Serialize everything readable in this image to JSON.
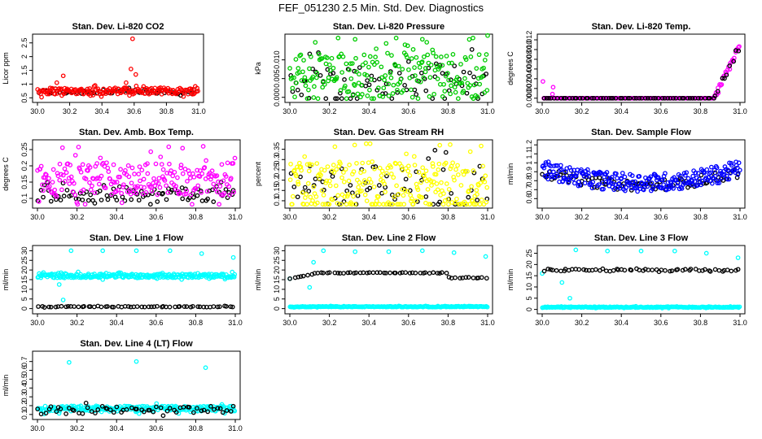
{
  "figure_title": "FEF_051230  2.5 Min. Std. Dev. Diagnostics",
  "colors": {
    "black": "#000000",
    "red": "#ff0000",
    "green": "#00cc00",
    "magenta": "#ff00ff",
    "yellow": "#ffff00",
    "blue": "#0000ff",
    "cyan": "#00ffff"
  },
  "chart_data": [
    {
      "type": "scatter",
      "title": "Stan. Dev. Li-820 CO2",
      "ylabel": "Licor ppm",
      "xlim": [
        30.0,
        31.0
      ],
      "ylim": [
        0.45,
        2.7
      ],
      "xticks": [
        "30.0",
        "30.2",
        "30.4",
        "30.6",
        "30.8",
        "31.0"
      ],
      "yticks": [
        0.5,
        1.0,
        1.5,
        2.0,
        2.5
      ],
      "series": [
        {
          "name": "black",
          "color": "black",
          "pattern": "band",
          "base": 0.72,
          "spread": 0.08,
          "n": 60
        },
        {
          "name": "red",
          "color": "red",
          "pattern": "band",
          "base": 0.75,
          "spread": 0.12,
          "n": 180,
          "outliers": [
            [
              30.59,
              2.65
            ],
            [
              30.58,
              1.55
            ],
            [
              30.61,
              1.35
            ],
            [
              30.55,
              1.05
            ],
            [
              30.16,
              1.3
            ],
            [
              30.12,
              1.05
            ]
          ]
        }
      ]
    },
    {
      "type": "scatter",
      "title": "Stan. Dev. Li-820 Pressure",
      "ylabel": "kPa",
      "xlim": [
        30.0,
        31.0
      ],
      "ylim": [
        -0.0005,
        0.016
      ],
      "xticks": [
        "30.0",
        "30.2",
        "30.4",
        "30.6",
        "30.8",
        "31.0"
      ],
      "yticks": [
        "0.000",
        "0.005",
        "0.010"
      ],
      "series": [
        {
          "name": "black",
          "color": "black",
          "pattern": "band",
          "base": 0.004,
          "spread": 0.005,
          "n": 80
        },
        {
          "name": "green",
          "color": "green",
          "pattern": "band",
          "base": 0.006,
          "spread": 0.006,
          "n": 220,
          "outliers": [
            [
              30.33,
              0.0155
            ],
            [
              30.67,
              0.0155
            ],
            [
              31.0,
              0.0165
            ]
          ]
        }
      ]
    },
    {
      "type": "scatter",
      "title": "Stan. Dev. Li-820 Temp.",
      "ylabel": "degrees C",
      "xlim": [
        30.0,
        31.0
      ],
      "ylim": [
        -0.0002,
        0.0125
      ],
      "xticks": [
        "30.0",
        "30.2",
        "30.4",
        "30.6",
        "30.8",
        "31.0"
      ],
      "yticks": [
        "0.000",
        "0.002",
        "0.004",
        "0.006",
        "0.008",
        "0.010",
        "0.012"
      ],
      "series": [
        {
          "name": "magenta",
          "color": "magenta",
          "pattern": "vshape",
          "base": 0.0,
          "spread": 0.0,
          "n": 200
        },
        {
          "name": "black",
          "color": "black",
          "pattern": "vshape",
          "base": 0.0,
          "spread": 0.0,
          "n": 70
        }
      ]
    },
    {
      "type": "scatter",
      "title": "Stan. Dev. Amb. Box Temp.",
      "ylabel": "degrees C",
      "xlim": [
        30.0,
        31.0
      ],
      "ylim": [
        0.08,
        0.27
      ],
      "xticks": [
        "30.0",
        "30.2",
        "30.4",
        "30.6",
        "30.8",
        "31.0"
      ],
      "yticks": [
        0.1,
        0.15,
        0.2,
        0.25
      ],
      "series": [
        {
          "name": "black",
          "color": "black",
          "pattern": "band",
          "base": 0.11,
          "spread": 0.02,
          "n": 90
        },
        {
          "name": "magenta",
          "color": "magenta",
          "pattern": "band",
          "base": 0.16,
          "spread": 0.05,
          "n": 230
        }
      ]
    },
    {
      "type": "scatter",
      "title": "Stan. Dev. Gas Stream RH",
      "ylabel": "percent",
      "xlim": [
        30.0,
        31.0
      ],
      "ylim": [
        0.08,
        0.38
      ],
      "xticks": [
        "30.0",
        "30.2",
        "30.4",
        "30.6",
        "30.8",
        "31.0"
      ],
      "yticks": [
        0.1,
        0.15,
        0.2,
        0.25,
        0.3,
        0.35
      ],
      "series": [
        {
          "name": "black",
          "color": "black",
          "pattern": "band",
          "base": 0.17,
          "spread": 0.1,
          "n": 70
        },
        {
          "name": "yellow",
          "color": "yellow",
          "pattern": "band",
          "base": 0.17,
          "spread": 0.12,
          "n": 260
        }
      ]
    },
    {
      "type": "scatter",
      "title": "Stan. Dev. Sample Flow",
      "ylabel": "ml/min",
      "xlim": [
        30.0,
        31.0
      ],
      "ylim": [
        0.53,
        1.22
      ],
      "xticks": [
        "30.0",
        "30.2",
        "30.4",
        "30.6",
        "30.8",
        "31.0"
      ],
      "yticks": [
        0.6,
        0.7,
        0.8,
        0.9,
        1.0,
        1.1,
        1.2
      ],
      "series": [
        {
          "name": "black",
          "color": "black",
          "pattern": "ushape",
          "base": 0.75,
          "spread": 0.06,
          "n": 90
        },
        {
          "name": "blue",
          "color": "blue",
          "pattern": "ushape",
          "base": 0.78,
          "spread": 0.1,
          "n": 260
        }
      ]
    },
    {
      "type": "scatter",
      "title": "Stan. Dev. Line 1 Flow",
      "ylabel": "ml/min",
      "xlim": [
        30.0,
        31.0
      ],
      "ylim": [
        -1,
        31
      ],
      "xticks": [
        "30.0",
        "30.2",
        "30.4",
        "30.6",
        "30.8",
        "31.0"
      ],
      "yticks": [
        0,
        5,
        10,
        15,
        20,
        25,
        30
      ],
      "series": [
        {
          "name": "cyan",
          "color": "cyan",
          "pattern": "band",
          "base": 17,
          "spread": 1,
          "n": 250,
          "outliers": [
            [
              30.17,
              30
            ],
            [
              30.33,
              30
            ],
            [
              30.5,
              30
            ],
            [
              30.67,
              30
            ],
            [
              30.83,
              28.5
            ],
            [
              30.99,
              26.5
            ],
            [
              30.13,
              4.5
            ],
            [
              30.11,
              12.5
            ]
          ]
        },
        {
          "name": "black",
          "color": "black",
          "pattern": "band",
          "base": 1,
          "spread": 0.2,
          "n": 60
        }
      ]
    },
    {
      "type": "scatter",
      "title": "Stan. Dev. Line 2 Flow",
      "ylabel": "ml/min",
      "xlim": [
        30.0,
        31.0
      ],
      "ylim": [
        -1,
        31
      ],
      "xticks": [
        "30.0",
        "30.2",
        "30.4",
        "30.6",
        "30.8",
        "31.0"
      ],
      "yticks": [
        0,
        5,
        10,
        15,
        20,
        25,
        30
      ],
      "series": [
        {
          "name": "cyan",
          "color": "cyan",
          "pattern": "band",
          "base": 1,
          "spread": 0.2,
          "n": 220,
          "outliers": [
            [
              30.17,
              30
            ],
            [
              30.33,
              29.5
            ],
            [
              30.5,
              29.5
            ],
            [
              30.67,
              30
            ],
            [
              30.83,
              29
            ],
            [
              30.99,
              27
            ],
            [
              30.0,
              15.5
            ],
            [
              30.1,
              11
            ],
            [
              30.12,
              24
            ]
          ]
        },
        {
          "name": "black",
          "color": "black",
          "pattern": "plateau",
          "base": 18.5,
          "spread": 0.4,
          "n": 60
        }
      ]
    },
    {
      "type": "scatter",
      "title": "Stan. Dev. Line 3 Flow",
      "ylabel": "ml/min",
      "xlim": [
        30.0,
        31.0
      ],
      "ylim": [
        -0.5,
        27
      ],
      "xticks": [
        "30.0",
        "30.2",
        "30.4",
        "30.6",
        "30.8",
        "31.0"
      ],
      "yticks": [
        0,
        5,
        10,
        15,
        20,
        25
      ],
      "series": [
        {
          "name": "cyan",
          "color": "cyan",
          "pattern": "band",
          "base": 1,
          "spread": 0.2,
          "n": 220,
          "outliers": [
            [
              30.17,
              26.5
            ],
            [
              30.33,
              26
            ],
            [
              30.5,
              26
            ],
            [
              30.67,
              26
            ],
            [
              30.83,
              25
            ],
            [
              30.99,
              23
            ],
            [
              30.0,
              16
            ],
            [
              30.1,
              12
            ],
            [
              30.14,
              5
            ]
          ]
        },
        {
          "name": "black",
          "color": "black",
          "pattern": "band",
          "base": 17.5,
          "spread": 0.5,
          "n": 60
        }
      ]
    },
    {
      "type": "scatter",
      "title": "Stan. Dev. Line 4 (LT) Flow",
      "ylabel": "ml/min",
      "xlim": [
        30.0,
        31.0
      ],
      "ylim": [
        0.08,
        0.78
      ],
      "xticks": [
        "30.0",
        "30.2",
        "30.4",
        "30.6",
        "30.8",
        "31.0"
      ],
      "yticks": [
        0.1,
        0.2,
        0.3,
        0.4,
        0.5,
        0.6,
        0.7
      ],
      "series": [
        {
          "name": "cyan",
          "color": "cyan",
          "pattern": "band",
          "base": 0.165,
          "spread": 0.03,
          "n": 240,
          "outliers": [
            [
              30.16,
              0.69
            ],
            [
              30.5,
              0.7
            ],
            [
              30.85,
              0.63
            ]
          ]
        },
        {
          "name": "black",
          "color": "black",
          "pattern": "band",
          "base": 0.155,
          "spread": 0.04,
          "n": 60
        }
      ]
    }
  ]
}
